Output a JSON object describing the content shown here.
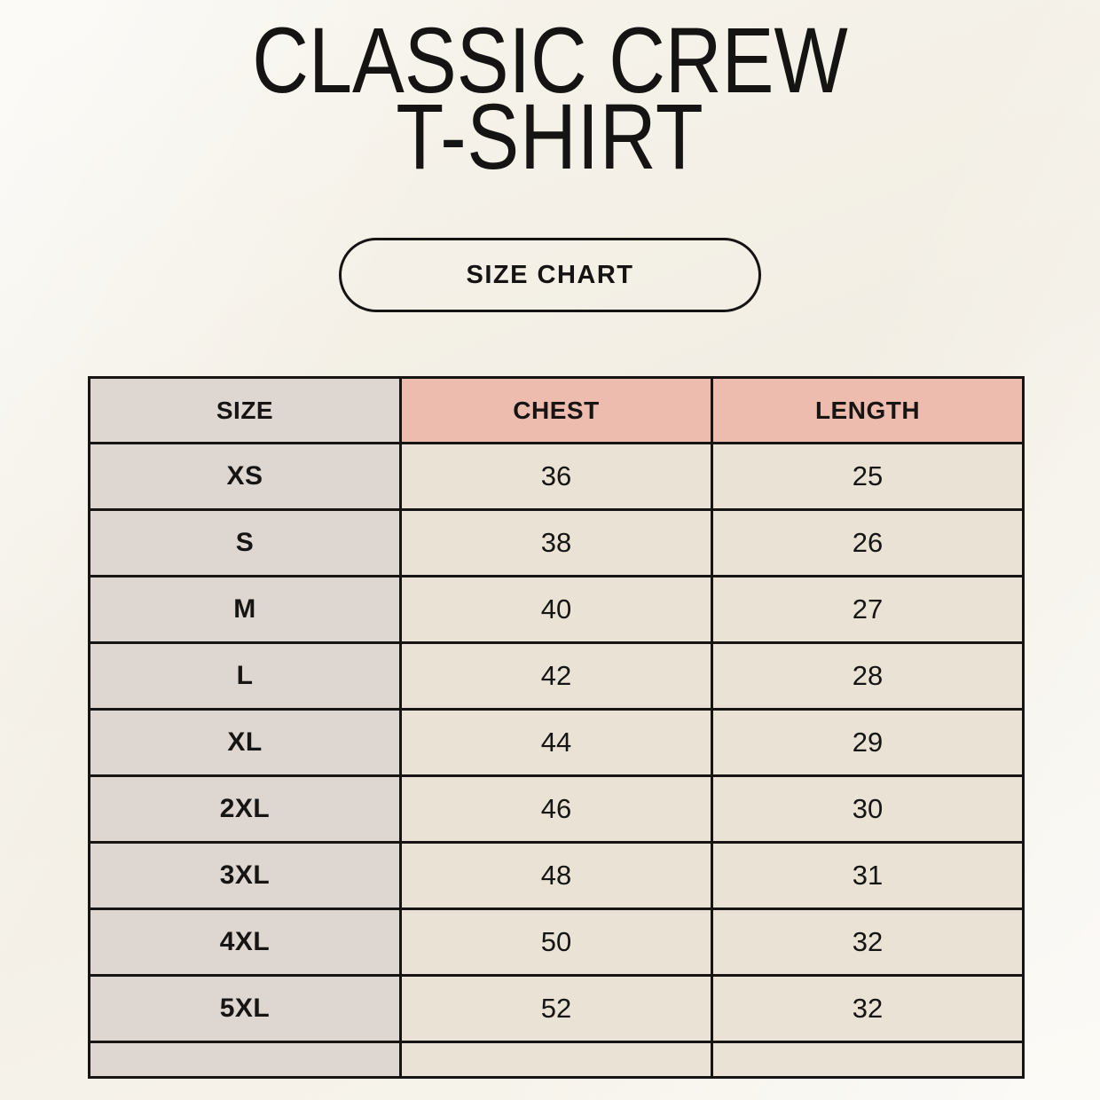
{
  "page": {
    "background_color": "#f6f3ea",
    "text_color": "#151413"
  },
  "header": {
    "title_line1": "CLASSIC CREW",
    "title_line2": "T-SHIRT"
  },
  "size_chart_button": {
    "label": "SIZE CHART"
  },
  "colors": {
    "size_column_bg": "#ddd6d1",
    "measure_header_bg": "#edbcae",
    "data_cell_bg": "#e9e2d5",
    "table_border": "#161514"
  },
  "chart_data": {
    "type": "table",
    "title": "CLASSIC CREW T-SHIRT",
    "columns": [
      "SIZE",
      "CHEST",
      "LENGTH"
    ],
    "rows": [
      [
        "XS",
        "36",
        "25"
      ],
      [
        "S",
        "38",
        "26"
      ],
      [
        "M",
        "40",
        "27"
      ],
      [
        "L",
        "42",
        "28"
      ],
      [
        "XL",
        "44",
        "29"
      ],
      [
        "2XL",
        "46",
        "30"
      ],
      [
        "3XL",
        "48",
        "31"
      ],
      [
        "4XL",
        "50",
        "32"
      ],
      [
        "5XL",
        "52",
        "32"
      ]
    ]
  }
}
